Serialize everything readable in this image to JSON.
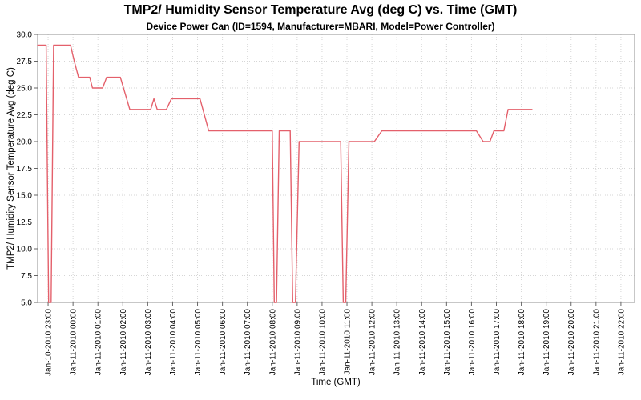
{
  "title": "TMP2/ Humidity Sensor Temperature Avg (deg C) vs. Time (GMT)",
  "subtitle": "Device Power Can (ID=1594, Manufacturer=MBARI, Model=Power Controller)",
  "colors": {
    "series_line": "#e4606b",
    "gridline": "#d6d6d6",
    "plot_border": "#a9a9a9",
    "tick_mark": "#666666",
    "text": "#000000",
    "background": "#ffffff"
  },
  "chart_data": {
    "type": "line",
    "title": "TMP2/ Humidity Sensor Temperature Avg (deg C) vs. Time (GMT)",
    "subtitle": "Device Power Can (ID=1594, Manufacturer=MBARI, Model=Power Controller)",
    "xlabel": "Time (GMT)",
    "ylabel": "TMP2/ Humidity Sensor Temperature Avg (deg C)",
    "ylim": [
      5.0,
      30.0
    ],
    "x_domain_hours": [
      22.58,
      46.55
    ],
    "grid": "dotted, at every hour tick and every 2.5 deg tick",
    "legend": "none",
    "annotations": "sharp downward spikes reach the 5.0 axis minimum (clipped at plot bottom); series ends at about Jan-11 18:25",
    "y_ticks": [
      {
        "v": 5.0,
        "label": "5.0"
      },
      {
        "v": 7.5,
        "label": "7.5"
      },
      {
        "v": 10.0,
        "label": "10.0"
      },
      {
        "v": 12.5,
        "label": "12.5"
      },
      {
        "v": 15.0,
        "label": "15.0"
      },
      {
        "v": 17.5,
        "label": "17.5"
      },
      {
        "v": 20.0,
        "label": "20.0"
      },
      {
        "v": 22.5,
        "label": "22.5"
      },
      {
        "v": 25.0,
        "label": "25.0"
      },
      {
        "v": 27.5,
        "label": "27.5"
      },
      {
        "v": 30.0,
        "label": "30.0"
      }
    ],
    "x_ticks": [
      {
        "t": 23,
        "label": "Jan-10-2010 23:00"
      },
      {
        "t": 24,
        "label": "Jan-11-2010 00:00"
      },
      {
        "t": 25,
        "label": "Jan-11-2010 01:00"
      },
      {
        "t": 26,
        "label": "Jan-11-2010 02:00"
      },
      {
        "t": 27,
        "label": "Jan-11-2010 03:00"
      },
      {
        "t": 28,
        "label": "Jan-11-2010 04:00"
      },
      {
        "t": 29,
        "label": "Jan-11-2010 05:00"
      },
      {
        "t": 30,
        "label": "Jan-11-2010 06:00"
      },
      {
        "t": 31,
        "label": "Jan-11-2010 07:00"
      },
      {
        "t": 32,
        "label": "Jan-11-2010 08:00"
      },
      {
        "t": 33,
        "label": "Jan-11-2010 09:00"
      },
      {
        "t": 34,
        "label": "Jan-11-2010 10:00"
      },
      {
        "t": 35,
        "label": "Jan-11-2010 11:00"
      },
      {
        "t": 36,
        "label": "Jan-11-2010 12:00"
      },
      {
        "t": 37,
        "label": "Jan-11-2010 13:00"
      },
      {
        "t": 38,
        "label": "Jan-11-2010 14:00"
      },
      {
        "t": 39,
        "label": "Jan-11-2010 15:00"
      },
      {
        "t": 40,
        "label": "Jan-11-2010 16:00"
      },
      {
        "t": 41,
        "label": "Jan-11-2010 17:00"
      },
      {
        "t": 42,
        "label": "Jan-11-2010 18:00"
      },
      {
        "t": 43,
        "label": "Jan-11-2010 19:00"
      },
      {
        "t": 44,
        "label": "Jan-11-2010 20:00"
      },
      {
        "t": 45,
        "label": "Jan-11-2010 21:00"
      },
      {
        "t": 46,
        "label": "Jan-11-2010 22:00"
      }
    ],
    "series": [
      {
        "name": "TMP2/ Humidity Sensor Temperature Avg",
        "color": "#e4606b",
        "points_t_hours_since_Jan10_0000_v_degC": [
          [
            22.58,
            29
          ],
          [
            22.92,
            29
          ],
          [
            23.02,
            5
          ],
          [
            23.12,
            5
          ],
          [
            23.22,
            29
          ],
          [
            23.9,
            29
          ],
          [
            24.05,
            27.5
          ],
          [
            24.22,
            26
          ],
          [
            24.67,
            26
          ],
          [
            24.78,
            25
          ],
          [
            25.19,
            25
          ],
          [
            25.35,
            26
          ],
          [
            25.9,
            26
          ],
          [
            26.28,
            23
          ],
          [
            27.12,
            23
          ],
          [
            27.25,
            24
          ],
          [
            27.38,
            23
          ],
          [
            27.75,
            23
          ],
          [
            27.95,
            24
          ],
          [
            29.1,
            24
          ],
          [
            29.45,
            21
          ],
          [
            32.0,
            21
          ],
          [
            32.08,
            5
          ],
          [
            32.17,
            5
          ],
          [
            32.28,
            21
          ],
          [
            32.72,
            21
          ],
          [
            32.82,
            5
          ],
          [
            32.93,
            5
          ],
          [
            33.08,
            20
          ],
          [
            34.75,
            20
          ],
          [
            34.85,
            5
          ],
          [
            34.95,
            5
          ],
          [
            35.08,
            20
          ],
          [
            36.1,
            20
          ],
          [
            36.4,
            21
          ],
          [
            40.2,
            21
          ],
          [
            40.47,
            20
          ],
          [
            40.74,
            20
          ],
          [
            40.9,
            21
          ],
          [
            41.3,
            21
          ],
          [
            41.47,
            23
          ],
          [
            42.43,
            23
          ]
        ]
      }
    ]
  }
}
